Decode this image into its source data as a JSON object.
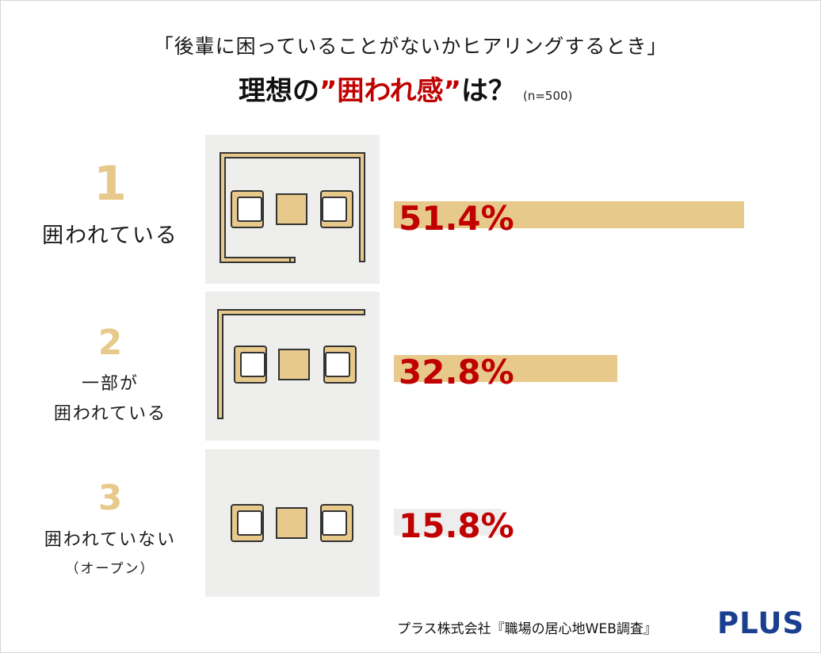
{
  "header": {
    "title_line1": "「後輩に困っていることがないかヒアリングするとき」",
    "title_line2_prefix": "理想の",
    "title_line2_highlight": "”囲われ感”",
    "title_line2_suffix": "は？",
    "sample_size": "(n=500)"
  },
  "chart_data": {
    "type": "bar",
    "orientation": "horizontal",
    "categories": [
      "囲われている",
      "一部が囲われている",
      "囲われていない（オープン）"
    ],
    "ranks": [
      "1",
      "2",
      "3"
    ],
    "values": [
      51.4,
      32.8,
      15.8
    ],
    "value_labels": [
      "51.4%",
      "32.8%",
      "15.8%"
    ],
    "xlim": [
      0,
      100
    ],
    "bar_color": "#e7c98b",
    "label_color": "#c00000"
  },
  "items": [
    {
      "rank": "1",
      "label_lines": [
        "囲われている"
      ],
      "icon": "fully-enclosed-room-icon"
    },
    {
      "rank": "2",
      "label_lines": [
        "一部が",
        "囲われている"
      ],
      "icon": "partially-enclosed-room-icon"
    },
    {
      "rank": "3",
      "label_lines": [
        "囲われていない",
        "（オープン）"
      ],
      "icon": "open-room-icon"
    }
  ],
  "footer": {
    "source": "プラス株式会社『職場の居心地WEB調査』",
    "logo": "PLUS"
  },
  "colors": {
    "accent": "#c00000",
    "bar": "#e7c98b",
    "panel": "#eeeeec",
    "logo": "#1a3f8f"
  }
}
